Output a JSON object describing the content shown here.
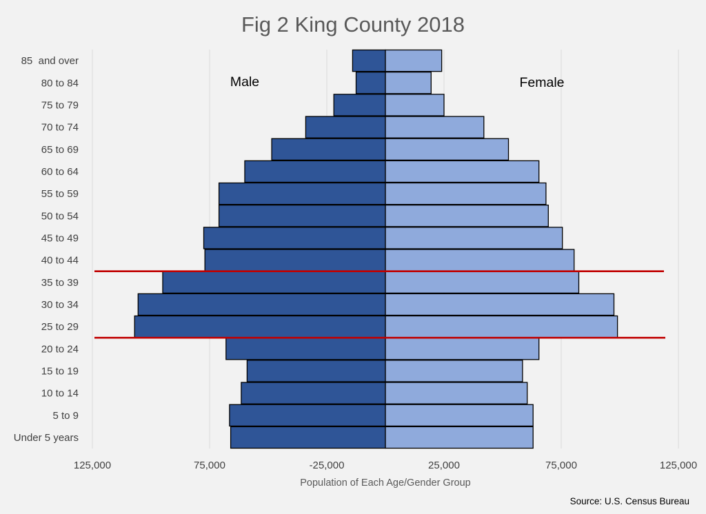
{
  "chart_data": {
    "type": "bar",
    "orientation": "horizontal",
    "title": "Fig 2 King County 2018",
    "xlabel": "Population of Each Age/Gender Group",
    "ylabel": "",
    "xlim": [
      -125000,
      125000
    ],
    "x_ticks": [
      -125000,
      -75000,
      -25000,
      25000,
      75000,
      125000
    ],
    "x_tick_labels": [
      "125,000",
      "75,000",
      "-25,000",
      "25,000",
      "75,000",
      "125,000"
    ],
    "categories": [
      "Under 5 years",
      "5 to 9",
      "10 to 14",
      "15 to 19",
      "20 to 24",
      "25 to 29",
      "30 to 34",
      "35 to 39",
      "40 to 44",
      "45 to 49",
      "50 to 54",
      "55 to 59",
      "60 to 64",
      "65 to 69",
      "70 to 74",
      "75 to 79",
      "80 to 84",
      "85  and over"
    ],
    "series": [
      {
        "name": "Male",
        "color": "#2f5597",
        "values": [
          -66000,
          -66500,
          -61500,
          -59000,
          -68000,
          -107000,
          -105500,
          -95000,
          -77000,
          -77500,
          -71000,
          -71000,
          -60000,
          -48500,
          -34000,
          -22000,
          -12500,
          -14000
        ]
      },
      {
        "name": "Female",
        "color": "#8faadc",
        "values": [
          63000,
          63000,
          60500,
          58500,
          65500,
          99000,
          97500,
          82500,
          80500,
          75500,
          69500,
          68500,
          65500,
          52500,
          42000,
          25000,
          19500,
          24000
        ]
      }
    ],
    "annotations": [
      "Male",
      "Female"
    ],
    "reference_lines": [
      {
        "between": [
          "40 to 44",
          "35 to 39"
        ],
        "color": "#c00000"
      },
      {
        "between": [
          "25 to 29",
          "20 to 24"
        ],
        "color": "#c00000"
      }
    ],
    "grid": true,
    "legend": "none",
    "source": "Source: U.S. Census Bureau"
  }
}
